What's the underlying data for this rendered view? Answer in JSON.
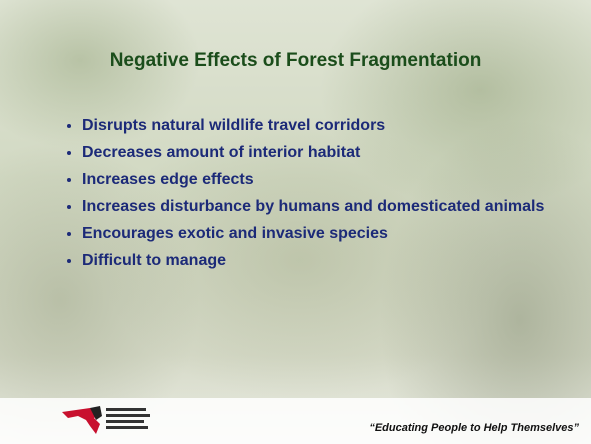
{
  "slide": {
    "title": "Negative Effects of Forest Fragmentation",
    "bullets": [
      "Disrupts natural wildlife travel corridors",
      "Decreases amount of interior habitat",
      "Increases edge effects",
      "Increases disturbance by humans and domesticated animals",
      "Encourages exotic and invasive species",
      "Difficult to manage"
    ],
    "tagline": "“Educating People to Help Themselves”"
  }
}
